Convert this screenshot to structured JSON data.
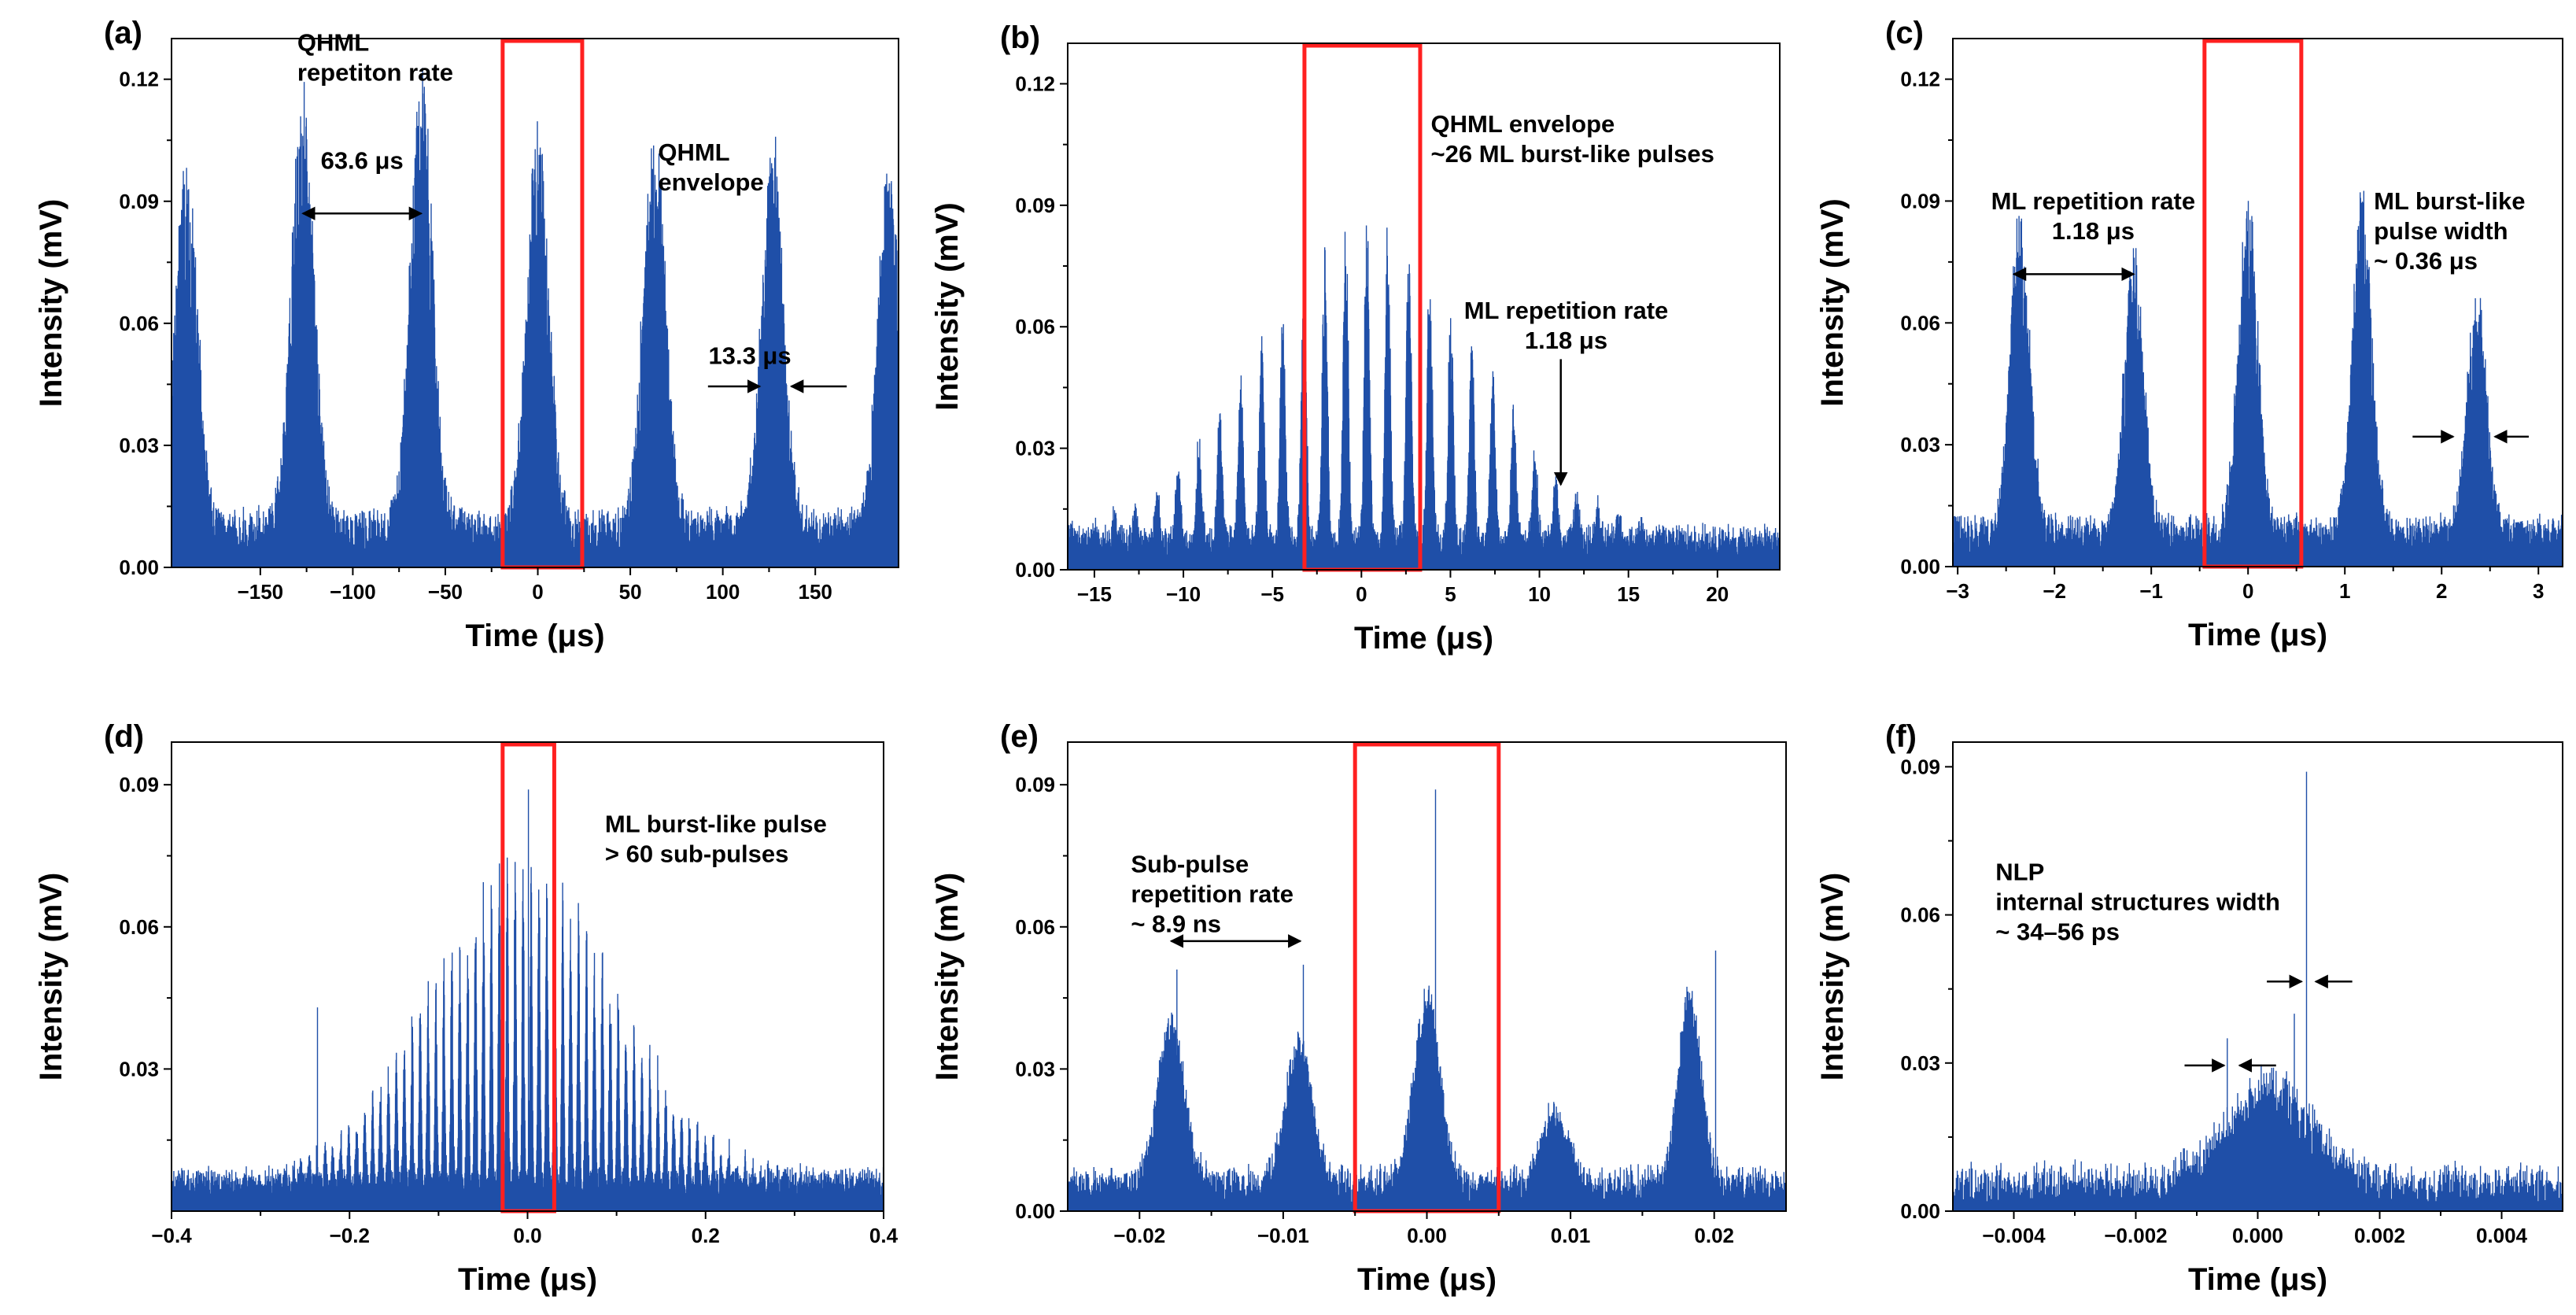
{
  "figure": {
    "colors": {
      "trace": "#1f4fa8",
      "highlight": "#ff2020",
      "axis": "#000000",
      "background": "#ffffff"
    }
  },
  "chart_data": [
    {
      "id": "a",
      "label": "(a)",
      "type": "line",
      "xlabel": "Time (μs)",
      "ylabel": "Intensity (mV)",
      "xlim": [
        -198,
        195
      ],
      "ylim": [
        0,
        0.13
      ],
      "xticks": [
        -150,
        -100,
        -50,
        0,
        50,
        100,
        150
      ],
      "xtick_labels": [
        "−150",
        "−100",
        "−50",
        "0",
        "50",
        "100",
        "150"
      ],
      "yticks": [
        0.0,
        0.03,
        0.06,
        0.09,
        0.12
      ],
      "ytick_labels": [
        "0.00",
        "0.03",
        "0.06",
        "0.09",
        "0.12"
      ],
      "highlight_box": [
        -19,
        24
      ],
      "synthetic": {
        "baseline": 0.004,
        "noise": 0.01,
        "density": 2.2,
        "decay": 0.25,
        "envelopes": [
          {
            "center": -190,
            "width": 6,
            "peak": 0.092
          },
          {
            "center": -127,
            "width": 6,
            "peak": 0.11
          },
          {
            "center": -63,
            "width": 6,
            "peak": 0.113
          },
          {
            "center": 0,
            "width": 6,
            "peak": 0.1
          },
          {
            "center": 63,
            "width": 6,
            "peak": 0.1
          },
          {
            "center": 127,
            "width": 6,
            "peak": 0.096
          },
          {
            "center": 190,
            "width": 6,
            "peak": 0.09
          }
        ]
      },
      "annotations": [
        {
          "lines": [
            "QHML",
            "repetiton rate"
          ],
          "x": -130,
          "y": 0.127,
          "anchor": "start"
        },
        {
          "lines": [
            "63.6 μs"
          ],
          "x": -95,
          "y": 0.098,
          "anchor": "middle"
        },
        {
          "lines": [
            "QHML",
            "envelope"
          ],
          "x": 65,
          "y": 0.1,
          "anchor": "start"
        },
        {
          "lines": [
            "13.3 μs"
          ],
          "x": 137,
          "y": 0.05,
          "anchor": "end"
        }
      ],
      "arrows": [
        {
          "x1": -127,
          "y1": 0.087,
          "x2": -63,
          "y2": 0.087,
          "heads": "both"
        },
        {
          "x1": 92,
          "y1": 0.0445,
          "x2": 120,
          "y2": 0.0445,
          "heads": "end"
        },
        {
          "x1": 167,
          "y1": 0.0445,
          "x2": 137,
          "y2": 0.0445,
          "heads": "end"
        }
      ]
    },
    {
      "id": "b",
      "label": "(b)",
      "type": "line",
      "xlabel": "Time (μs)",
      "ylabel": "Intensity (mV)",
      "xlim": [
        -16.5,
        23.5
      ],
      "ylim": [
        0,
        0.13
      ],
      "xticks": [
        -15,
        -10,
        -5,
        0,
        5,
        10,
        15,
        20
      ],
      "xtick_labels": [
        "−15",
        "−10",
        "−5",
        "0",
        "5",
        "10",
        "15",
        "20"
      ],
      "yticks": [
        0.0,
        0.03,
        0.06,
        0.09,
        0.12
      ],
      "ytick_labels": [
        "0.00",
        "0.03",
        "0.06",
        "0.09",
        "0.12"
      ],
      "highlight_box": [
        -3.2,
        3.3
      ],
      "synthetic": {
        "baseline": 0.004,
        "noise": 0.006,
        "density": 2.4,
        "decay": 0.22,
        "envelopes": [
          {
            "center": 0.3,
            "width": 6.0,
            "peak": 0.085,
            "period": 1.18,
            "subwidth": 0.14
          }
        ]
      },
      "annotations": [
        {
          "lines": [
            "QHML envelope",
            "~26 ML burst-like pulses"
          ],
          "x": 3.9,
          "y": 0.108,
          "anchor": "start"
        },
        {
          "lines": [
            "ML repetition rate",
            "1.18 μs"
          ],
          "x": 11.5,
          "y": 0.062,
          "anchor": "middle"
        }
      ],
      "arrows": [
        {
          "x1": 11.2,
          "y1": 0.052,
          "x2": 11.2,
          "y2": 0.021,
          "heads": "end"
        }
      ]
    },
    {
      "id": "c",
      "label": "(c)",
      "type": "line",
      "xlabel": "Time (μs)",
      "ylabel": "Intensity (mV)",
      "xlim": [
        -3.05,
        3.25
      ],
      "ylim": [
        0,
        0.13
      ],
      "xticks": [
        -3,
        -2,
        -1,
        0,
        1,
        2,
        3
      ],
      "xtick_labels": [
        "−3",
        "−2",
        "−1",
        "0",
        "1",
        "2",
        "3"
      ],
      "yticks": [
        0.0,
        0.03,
        0.06,
        0.09,
        0.12
      ],
      "ytick_labels": [
        "0.00",
        "0.03",
        "0.06",
        "0.09",
        "0.12"
      ],
      "highlight_box": [
        -0.45,
        0.55
      ],
      "synthetic": {
        "baseline": 0.004,
        "noise": 0.008,
        "density": 2.2,
        "decay": 0.25,
        "envelopes": [
          {
            "center": -2.36,
            "width": 0.1,
            "peak": 0.08
          },
          {
            "center": -1.18,
            "width": 0.1,
            "peak": 0.07
          },
          {
            "center": 0.0,
            "width": 0.1,
            "peak": 0.085
          },
          {
            "center": 1.18,
            "width": 0.1,
            "peak": 0.088
          },
          {
            "center": 2.36,
            "width": 0.1,
            "peak": 0.06
          }
        ]
      },
      "annotations": [
        {
          "lines": [
            "ML repetition rate",
            "1.18 μs"
          ],
          "x": -1.6,
          "y": 0.088,
          "anchor": "middle"
        },
        {
          "lines": [
            "ML burst-like",
            "pulse width",
            "~ 0.36 μs"
          ],
          "x": 1.3,
          "y": 0.088,
          "anchor": "start"
        }
      ],
      "arrows": [
        {
          "x1": -2.42,
          "y1": 0.072,
          "x2": -1.18,
          "y2": 0.072,
          "heads": "both"
        },
        {
          "x1": 1.7,
          "y1": 0.032,
          "x2": 2.12,
          "y2": 0.032,
          "heads": "end"
        },
        {
          "x1": 2.9,
          "y1": 0.032,
          "x2": 2.55,
          "y2": 0.032,
          "heads": "end"
        }
      ]
    },
    {
      "id": "d",
      "label": "(d)",
      "type": "line",
      "xlabel": "Time (μs)",
      "ylabel": "Intensity (mV)",
      "xlim": [
        -0.4,
        0.4
      ],
      "ylim": [
        0,
        0.099
      ],
      "xticks": [
        -0.4,
        -0.2,
        0.0,
        0.2,
        0.4
      ],
      "xtick_labels": [
        "−0.4",
        "−0.2",
        "0.0",
        "0.2",
        "0.4"
      ],
      "yticks": [
        0.03,
        0.06,
        0.09
      ],
      "ytick_labels": [
        "0.03",
        "0.06",
        "0.09"
      ],
      "highlight_box": [
        -0.028,
        0.03
      ],
      "synthetic": {
        "baseline": 0.004,
        "noise": 0.004,
        "density": 2.4,
        "decay": 0.15,
        "envelopes": [
          {
            "center": -0.005,
            "width": 0.105,
            "peak": 0.07,
            "period": 0.0089,
            "subwidth": 0.0012
          }
        ],
        "extra_spikes": [
          {
            "x": -0.236,
            "y": 0.043
          },
          {
            "x": 0.001,
            "y": 0.089
          }
        ]
      },
      "annotations": [
        {
          "lines": [
            "ML burst-like pulse",
            "> 60 sub-pulses"
          ],
          "x": 0.087,
          "y": 0.08,
          "anchor": "start"
        }
      ],
      "arrows": []
    },
    {
      "id": "e",
      "label": "(e)",
      "type": "line",
      "xlabel": "Time (μs)",
      "ylabel": "Intensity (mV)",
      "xlim": [
        -0.025,
        0.025
      ],
      "ylim": [
        0,
        0.099
      ],
      "xticks": [
        -0.02,
        -0.01,
        0.0,
        0.01,
        0.02
      ],
      "xtick_labels": [
        "−0.02",
        "−0.01",
        "0.00",
        "0.01",
        "0.02"
      ],
      "yticks": [
        0.0,
        0.03,
        0.06,
        0.09
      ],
      "ytick_labels": [
        "0.00",
        "0.03",
        "0.06",
        "0.09"
      ],
      "highlight_box": [
        -0.005,
        0.005
      ],
      "synthetic": {
        "baseline": 0.003,
        "noise": 0.006,
        "density": 1.5,
        "decay": 0.05,
        "envelopes": [
          {
            "center": -0.0178,
            "width": 0.0009,
            "peak": 0.035
          },
          {
            "center": -0.0089,
            "width": 0.0009,
            "peak": 0.03
          },
          {
            "center": 0.0,
            "width": 0.0009,
            "peak": 0.04
          },
          {
            "center": 0.0089,
            "width": 0.0009,
            "peak": 0.015
          },
          {
            "center": 0.0183,
            "width": 0.0008,
            "peak": 0.04
          }
        ],
        "extra_spikes": [
          {
            "x": -0.0174,
            "y": 0.051
          },
          {
            "x": -0.0086,
            "y": 0.052
          },
          {
            "x": 0.0006,
            "y": 0.089
          },
          {
            "x": 0.0201,
            "y": 0.055
          }
        ]
      },
      "annotations": [
        {
          "lines": [
            "Sub-pulse",
            "repetition rate",
            "~ 8.9 ns"
          ],
          "x": -0.0206,
          "y": 0.0715,
          "anchor": "start"
        }
      ],
      "arrows": [
        {
          "x1": -0.0178,
          "y1": 0.057,
          "x2": -0.0088,
          "y2": 0.057,
          "heads": "both"
        }
      ]
    },
    {
      "id": "f",
      "label": "(f)",
      "type": "line",
      "xlabel": "Time (μs)",
      "ylabel": "Intensity (mV)",
      "xlim": [
        -0.005,
        0.005
      ],
      "ylim": [
        0,
        0.095
      ],
      "xticks": [
        -0.004,
        -0.002,
        0.0,
        0.002,
        0.004
      ],
      "xtick_labels": [
        "−0.004",
        "−0.002",
        "0.000",
        "0.002",
        "0.004"
      ],
      "yticks": [
        0.0,
        0.03,
        0.06,
        0.09
      ],
      "ytick_labels": [
        "0.00",
        "0.03",
        "0.06",
        "0.09"
      ],
      "highlight_box": null,
      "synthetic": {
        "baseline": 0.004,
        "noise": 0.005,
        "density": 0.9,
        "decay": 0.1,
        "envelopes": [
          {
            "center": 0.0002,
            "width": 0.0007,
            "peak": 0.021
          }
        ],
        "extra_spikes": [
          {
            "x": 0.0008,
            "y": 0.089
          },
          {
            "x": -0.0005,
            "y": 0.035
          },
          {
            "x": 0.0006,
            "y": 0.04
          }
        ]
      },
      "annotations": [
        {
          "lines": [
            "NLP",
            "internal structures width",
            "~ 34–56 ps"
          ],
          "x": -0.0043,
          "y": 0.067,
          "anchor": "start"
        }
      ],
      "arrows": [
        {
          "x1": -0.0012,
          "y1": 0.0295,
          "x2": -0.00055,
          "y2": 0.0295,
          "heads": "end"
        },
        {
          "x1": 0.0003,
          "y1": 0.0295,
          "x2": -0.0003,
          "y2": 0.0295,
          "heads": "end"
        },
        {
          "x1": 0.00015,
          "y1": 0.0465,
          "x2": 0.00072,
          "y2": 0.0465,
          "heads": "end"
        },
        {
          "x1": 0.00155,
          "y1": 0.0465,
          "x2": 0.00095,
          "y2": 0.0465,
          "heads": "end"
        }
      ]
    }
  ]
}
